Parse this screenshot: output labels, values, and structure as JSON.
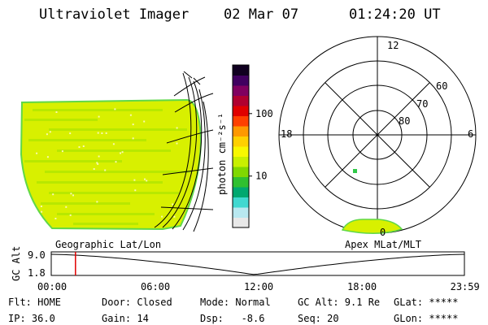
{
  "header": {
    "instrument": "Ultraviolet Imager",
    "date": "02 Mar 07",
    "time": "01:24:20 UT"
  },
  "colorbar": {
    "unit_label": "photon cm⁻²s⁻¹",
    "ticks": [
      {
        "value": 100,
        "label": "100"
      },
      {
        "value": 10,
        "label": "10"
      }
    ],
    "colors": [
      "#e8e8e8",
      "#b8e8f0",
      "#40d8d0",
      "#00a870",
      "#30c030",
      "#80d800",
      "#c8f000",
      "#f8f800",
      "#ffd000",
      "#ff9800",
      "#ff4000",
      "#e00000",
      "#b00030",
      "#800060",
      "#400060",
      "#100020"
    ]
  },
  "polar": {
    "mlt_labels": {
      "top": "12",
      "left": "18",
      "right": "6",
      "bottom": "0"
    },
    "lat_labels": [
      "60",
      "70",
      "80"
    ]
  },
  "map_labels": {
    "left": "Geographic Lat/Lon",
    "right": "Apex MLat/MLT"
  },
  "altitude_plot": {
    "ylabel": "GC Alt",
    "yticks": [
      "9.0",
      "1.8"
    ],
    "xticks": [
      "00:00",
      "06:00",
      "12:00",
      "18:00",
      "23:59"
    ],
    "current_time_hours": 1.406,
    "max_alt_re": 9.0,
    "min_alt_re": 1.8,
    "min_alt_time_hours": 11.8,
    "cursor_color": "#e00000"
  },
  "status": {
    "row1": [
      {
        "key": "flt",
        "text": "Flt: HOME"
      },
      {
        "key": "door",
        "text": "Door: Closed"
      },
      {
        "key": "mode",
        "text": "Mode: Normal"
      },
      {
        "key": "gcalt",
        "text": "GC Alt: 9.1 Re"
      },
      {
        "key": "glat",
        "text": "GLat: *****"
      }
    ],
    "row2": [
      {
        "key": "ip",
        "text": "IP: 36.0"
      },
      {
        "key": "gain",
        "text": "Gain: 14"
      },
      {
        "key": "dsp",
        "text": "Dsp:   -8.6"
      },
      {
        "key": "seq",
        "text": "Seq: 20"
      },
      {
        "key": "glon",
        "text": "GLon: *****"
      }
    ]
  },
  "image_colors": {
    "fill": "#d8f000",
    "edge": "#60d848",
    "streak": "#b8e800",
    "speck": "#f8f8b0",
    "spot": "#30c848"
  }
}
